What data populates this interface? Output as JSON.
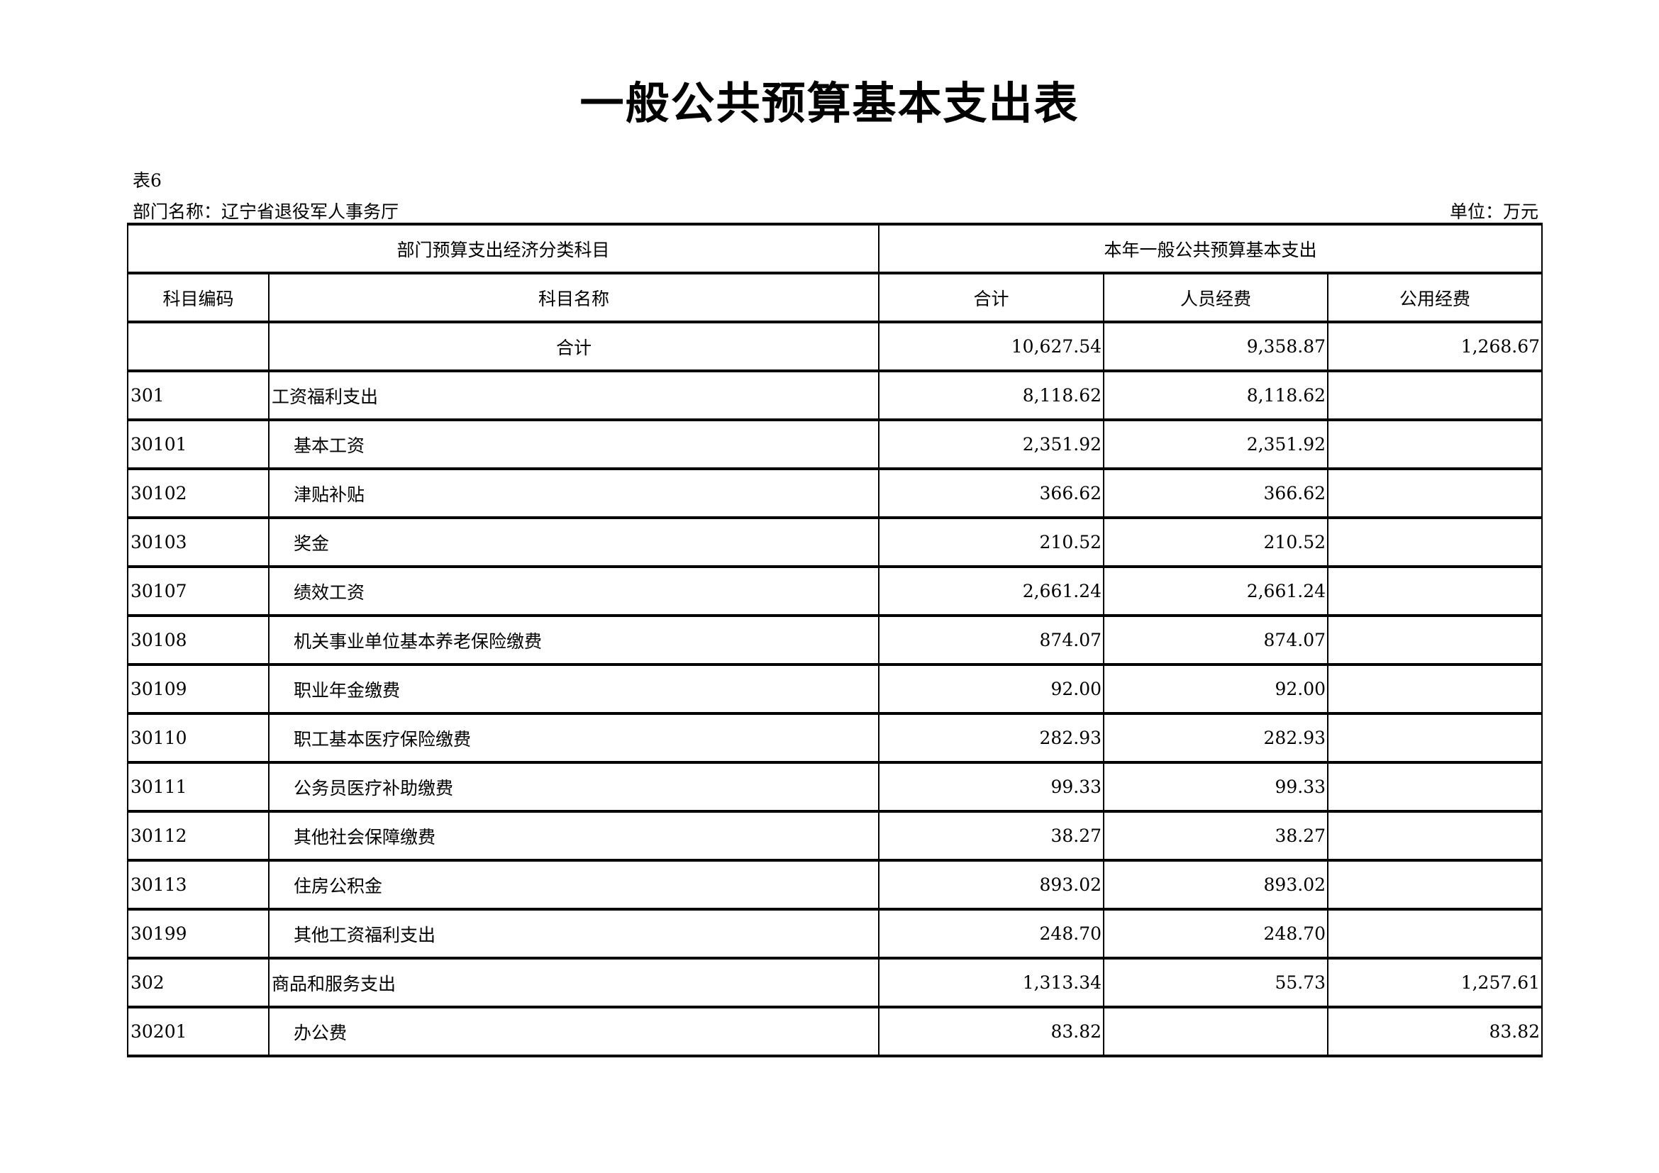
{
  "title": "一般公共预算基本支出表",
  "table_no": "表6",
  "department": "部门名称：辽宁省退役军人事务厅",
  "unit": "单位：万元",
  "header": {
    "group_left": "部门预算支出经济分类科目",
    "group_right": "本年一般公共预算基本支出",
    "code": "科目编码",
    "name": "科目名称",
    "total": "合计",
    "personnel": "人员经费",
    "public": "公用经费"
  },
  "rows": [
    {
      "code": "",
      "name": "合计",
      "total": "10,627.54",
      "personnel": "9,358.87",
      "public": "1,268.67",
      "level": 0
    },
    {
      "code": "301",
      "name": "工资福利支出",
      "total": "8,118.62",
      "personnel": "8,118.62",
      "public": "",
      "level": 1
    },
    {
      "code": "30101",
      "name": "基本工资",
      "total": "2,351.92",
      "personnel": "2,351.92",
      "public": "",
      "level": 2
    },
    {
      "code": "30102",
      "name": "津贴补贴",
      "total": "366.62",
      "personnel": "366.62",
      "public": "",
      "level": 2
    },
    {
      "code": "30103",
      "name": "奖金",
      "total": "210.52",
      "personnel": "210.52",
      "public": "",
      "level": 2
    },
    {
      "code": "30107",
      "name": "绩效工资",
      "total": "2,661.24",
      "personnel": "2,661.24",
      "public": "",
      "level": 2
    },
    {
      "code": "30108",
      "name": "机关事业单位基本养老保险缴费",
      "total": "874.07",
      "personnel": "874.07",
      "public": "",
      "level": 2
    },
    {
      "code": "30109",
      "name": "职业年金缴费",
      "total": "92.00",
      "personnel": "92.00",
      "public": "",
      "level": 2
    },
    {
      "code": "30110",
      "name": "职工基本医疗保险缴费",
      "total": "282.93",
      "personnel": "282.93",
      "public": "",
      "level": 2
    },
    {
      "code": "30111",
      "name": "公务员医疗补助缴费",
      "total": "99.33",
      "personnel": "99.33",
      "public": "",
      "level": 2
    },
    {
      "code": "30112",
      "name": "其他社会保障缴费",
      "total": "38.27",
      "personnel": "38.27",
      "public": "",
      "level": 2
    },
    {
      "code": "30113",
      "name": "住房公积金",
      "total": "893.02",
      "personnel": "893.02",
      "public": "",
      "level": 2
    },
    {
      "code": "30199",
      "name": "其他工资福利支出",
      "total": "248.70",
      "personnel": "248.70",
      "public": "",
      "level": 2
    },
    {
      "code": "302",
      "name": "商品和服务支出",
      "total": "1,313.34",
      "personnel": "55.73",
      "public": "1,257.61",
      "level": 1
    },
    {
      "code": "30201",
      "name": "办公费",
      "total": "83.82",
      "personnel": "",
      "public": "83.82",
      "level": 2
    }
  ]
}
